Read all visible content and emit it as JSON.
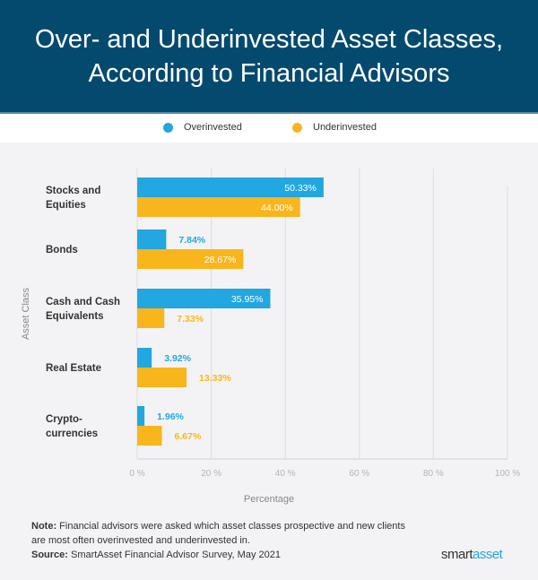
{
  "title_lines": [
    "Over- and Underinvested Asset Classes,",
    "According to Financial Advisors"
  ],
  "colors": {
    "overinvested": "#22a7e0",
    "underinvested": "#f8b61c",
    "header": "#044a6f"
  },
  "chart_data": {
    "type": "bar",
    "orientation": "horizontal",
    "categories": [
      [
        "Stocks and",
        "Equities"
      ],
      [
        "Bonds"
      ],
      [
        "Cash and Cash",
        "Equivalents"
      ],
      [
        "Real Estate"
      ],
      [
        "Crypto-",
        "currencies"
      ]
    ],
    "series": [
      {
        "name": "Overinvested",
        "values": [
          50.33,
          7.84,
          35.95,
          3.92,
          1.96
        ],
        "labels": [
          "50.33%",
          "7.84%",
          "35.95%",
          "3.92%",
          "1.96%"
        ]
      },
      {
        "name": "Underinvested",
        "values": [
          44.0,
          28.67,
          7.33,
          13.33,
          6.67
        ],
        "labels": [
          "44.00%",
          "28.67%",
          "7.33%",
          "13.33%",
          "6.67%"
        ]
      }
    ],
    "xlabel": "Percentage",
    "ylabel": "Asset Class",
    "xlim": [
      0,
      100
    ],
    "xticks": [
      "0 %",
      "20 %",
      "40 %",
      "60 %",
      "80 %",
      "100 %"
    ],
    "grid": true,
    "legend": "top"
  },
  "note_label": "Note:",
  "note": " Financial advisors were asked which asset classes prospective and new clients are most often overinvested and underinvested in.",
  "source_label": "Source:",
  "source": " SmartAsset Financial Advisor Survey, May 2021",
  "logo": {
    "part1": "smart",
    "part2": "asset"
  }
}
